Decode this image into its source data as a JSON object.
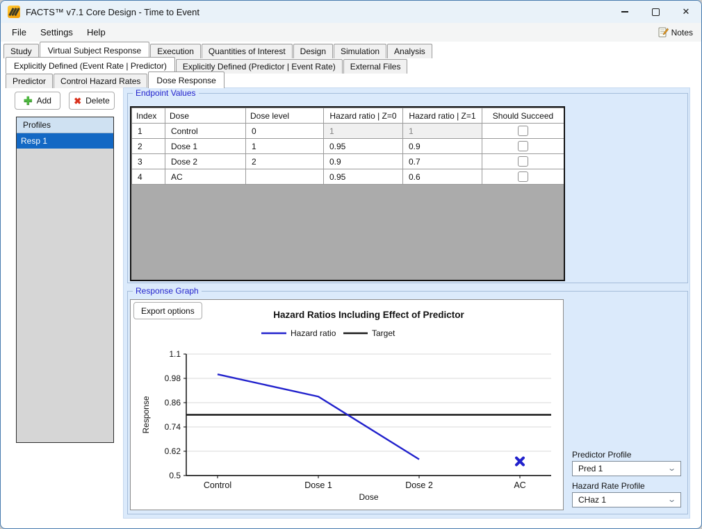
{
  "window": {
    "title": "FACTS™ v7.1 Core Design - Time to Event"
  },
  "menubar": {
    "items": [
      "File",
      "Settings",
      "Help"
    ],
    "notes_label": "Notes"
  },
  "tabs": {
    "level1": {
      "items": [
        "Study",
        "Virtual Subject Response",
        "Execution",
        "Quantities of Interest",
        "Design",
        "Simulation",
        "Analysis"
      ],
      "selected": 1
    },
    "level2": {
      "items": [
        "Explicitly Defined (Event Rate | Predictor)",
        "Explicitly Defined (Predictor | Event Rate)",
        "External Files"
      ],
      "selected": 0
    },
    "level3": {
      "items": [
        "Predictor",
        "Control Hazard Rates",
        "Dose Response"
      ],
      "selected": 2
    }
  },
  "profiles_panel": {
    "add_label": "Add",
    "delete_label": "Delete",
    "header": "Profiles",
    "items": [
      "Resp 1"
    ],
    "selected_index": 0
  },
  "endpoint_values": {
    "group_title": "Endpoint Values",
    "table": {
      "columns": [
        "Index",
        "Dose",
        "Dose level",
        "Hazard ratio | Z=0",
        "Hazard ratio | Z=1",
        "Should Succeed"
      ],
      "rows": [
        {
          "index": "1",
          "dose": "Control",
          "dose_level": "0",
          "hr_z0": "1",
          "hr_z1": "1",
          "should_succeed": false,
          "hr_disabled": true
        },
        {
          "index": "2",
          "dose": "Dose 1",
          "dose_level": "1",
          "hr_z0": "0.95",
          "hr_z1": "0.9",
          "should_succeed": false,
          "hr_disabled": false
        },
        {
          "index": "3",
          "dose": "Dose 2",
          "dose_level": "2",
          "hr_z0": "0.9",
          "hr_z1": "0.7",
          "should_succeed": false,
          "hr_disabled": false
        },
        {
          "index": "4",
          "dose": "AC",
          "dose_level": "",
          "hr_z0": "0.95",
          "hr_z1": "0.6",
          "should_succeed": false,
          "hr_disabled": false
        }
      ]
    }
  },
  "response_graph": {
    "group_title": "Response Graph",
    "export_button_label": "Export options"
  },
  "chart_data": {
    "type": "line",
    "title": "Hazard Ratios Including Effect of Predictor",
    "categories": [
      "Control",
      "Dose 1",
      "Dose 2",
      "AC"
    ],
    "series": [
      {
        "name": "Hazard ratio",
        "color": "#2121cc",
        "values": [
          1.0,
          0.89,
          0.58,
          null
        ],
        "detached_marker": {
          "category_index": 3,
          "value": 0.57,
          "shape": "x"
        }
      },
      {
        "name": "Target",
        "color": "#1a1a1a",
        "values": [
          0.8,
          0.8,
          0.8,
          0.8
        ],
        "draw": "full-width-line"
      }
    ],
    "xlabel": "Dose",
    "ylabel": "Response",
    "ylim": [
      0.5,
      1.1
    ],
    "yticks": [
      0.5,
      0.62,
      0.74,
      0.86,
      0.98,
      1.1
    ],
    "ytick_labels": [
      "0.5",
      "0.62",
      "0.74",
      "0.86",
      "0.98",
      "1.1"
    ],
    "legend_position": "top-center",
    "grid": "horizontal"
  },
  "right_panel": {
    "predictor_profile_label": "Predictor Profile",
    "predictor_profile_value": "Pred 1",
    "hazard_rate_profile_label": "Hazard Rate Profile",
    "hazard_rate_profile_value": "CHaz 1"
  },
  "colors": {
    "titlebar_bg": "#e9f2f9",
    "panel_bg": "#dbeafb",
    "group_label": "#2323cc",
    "selection_blue": "#1368c4",
    "table_filler_gray": "#ababab",
    "series_blue": "#2121cc",
    "target_black": "#1a1a1a",
    "gridline": "#d9d9d9"
  }
}
